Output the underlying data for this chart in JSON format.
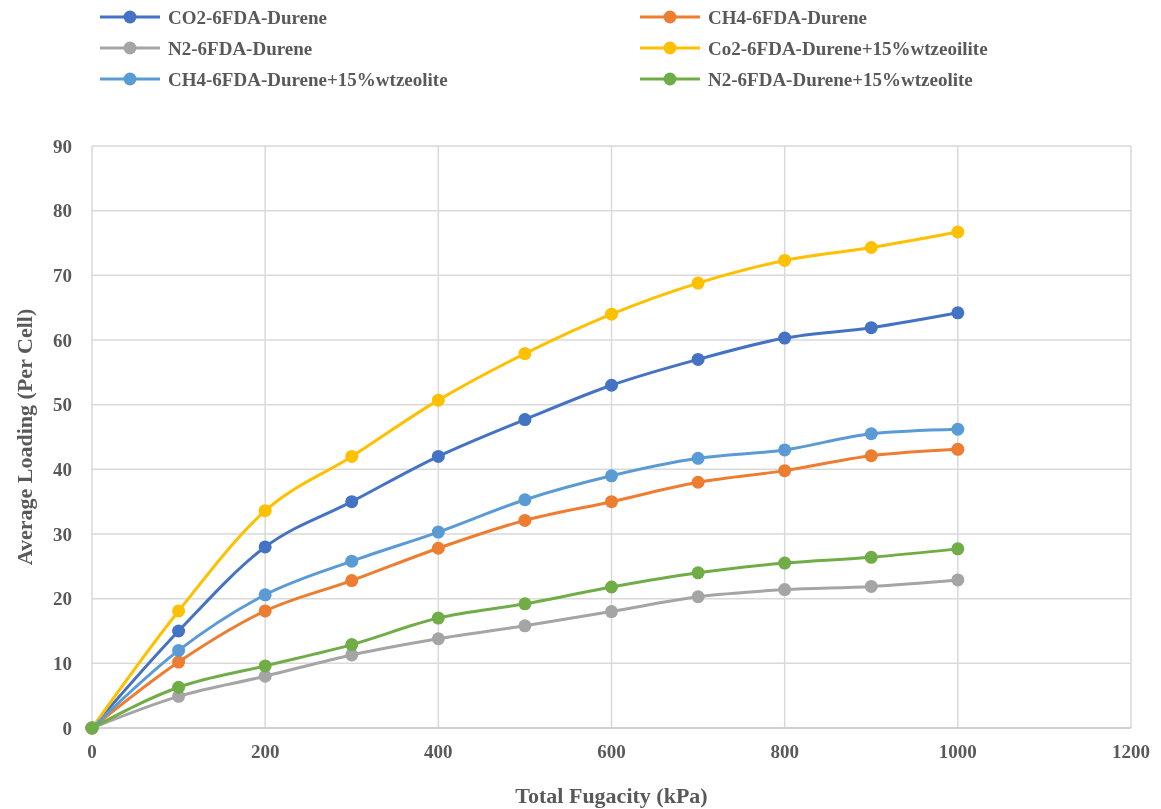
{
  "chart_data": {
    "type": "line",
    "xlabel": "Total Fugacity (kPa)",
    "ylabel": "Average Loading (Per Cell)",
    "x": [
      0,
      100,
      200,
      300,
      400,
      500,
      600,
      700,
      800,
      900,
      1000
    ],
    "series": [
      {
        "name": "CO2-6FDA-Durene",
        "color": "#4472c4",
        "values": [
          0,
          15,
          28,
          35,
          42,
          47.7,
          53,
          57,
          60.3,
          61.9,
          64.2
        ]
      },
      {
        "name": "CH4-6FDA-Durene",
        "color": "#ed7d31",
        "values": [
          0,
          10.2,
          18.1,
          22.8,
          27.8,
          32.1,
          35,
          38,
          39.8,
          42.1,
          43.1
        ]
      },
      {
        "name": "N2-6FDA-Durene",
        "color": "#a5a5a5",
        "values": [
          0,
          4.9,
          8,
          11.3,
          13.8,
          15.8,
          18,
          20.3,
          21.4,
          21.9,
          22.9
        ]
      },
      {
        "name": "Co2-6FDA-Durene+15%wtzeoilite",
        "color": "#ffc000",
        "values": [
          0,
          18.1,
          33.6,
          42,
          50.7,
          57.9,
          64,
          68.8,
          72.3,
          74.3,
          76.7
        ]
      },
      {
        "name": "CH4-6FDA-Durene+15%wtzeolite",
        "color": "#5b9bd5",
        "values": [
          0,
          12,
          20.6,
          25.8,
          30.3,
          35.3,
          39,
          41.7,
          43,
          45.5,
          46.2
        ]
      },
      {
        "name": "N2-6FDA-Durene+15%wtzeolite",
        "color": "#70ad47",
        "values": [
          0,
          6.3,
          9.6,
          12.9,
          17,
          19.2,
          21.8,
          24,
          25.5,
          26.4,
          27.7
        ]
      }
    ],
    "xlim": [
      0,
      1200
    ],
    "xticks": [
      0,
      200,
      400,
      600,
      800,
      1000,
      1200
    ],
    "ylim": [
      0,
      90
    ],
    "yticks": [
      0,
      10,
      20,
      30,
      40,
      50,
      60,
      70,
      80,
      90
    ],
    "grid": true,
    "legend": "top",
    "marker": "circle",
    "line_style": "solid"
  }
}
